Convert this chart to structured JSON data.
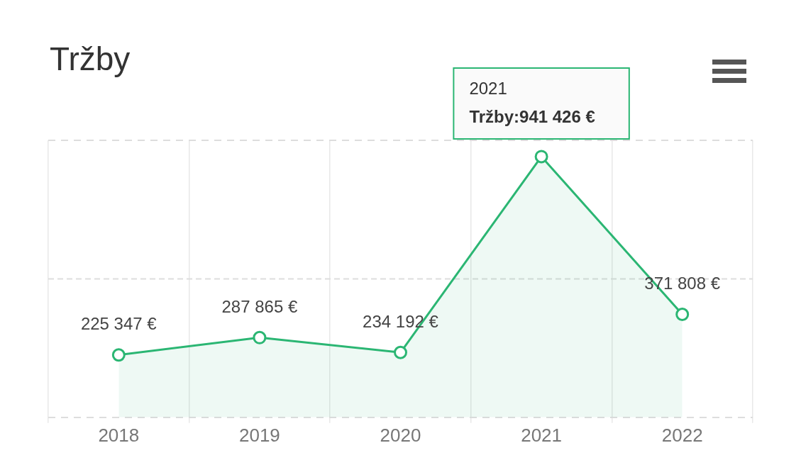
{
  "chart_data": {
    "type": "area",
    "title": "Tržby",
    "categories": [
      "2018",
      "2019",
      "2020",
      "2021",
      "2022"
    ],
    "series": [
      {
        "color": "#2bb673",
        "values": [
          225347,
          287865,
          234192,
          941426,
          371808
        ],
        "value_labels": [
          "225 347 €",
          "287 865 €",
          "234 192 €",
          null,
          "371 808 €"
        ]
      }
    ],
    "ylim": [
      0,
      1000000
    ],
    "yticks": [
      {
        "value": 0,
        "label": null
      },
      {
        "value": 1000000,
        "label": null
      }
    ],
    "ref_lines": [
      {
        "axis": "y",
        "value": 500000,
        "color": "#dddddd",
        "line_style": "dashed"
      }
    ],
    "tick_labels": "x",
    "grid": true,
    "marker": "circle",
    "line_style": "solid",
    "annotations": [
      {
        "text": "Tržby:941 426 €",
        "x": "2021",
        "y": 941426
      }
    ]
  }
}
